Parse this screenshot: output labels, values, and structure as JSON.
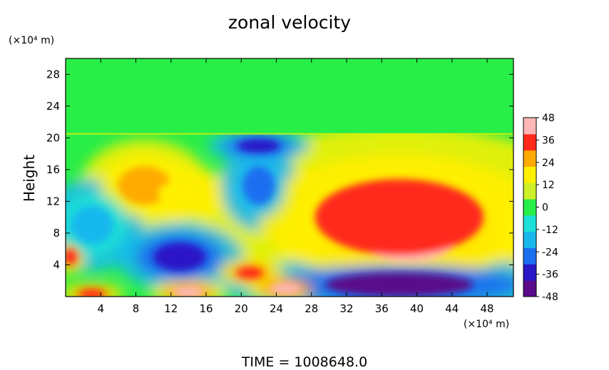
{
  "chart_data": {
    "type": "heatmap",
    "title": "zonal velocity",
    "xlabel": "",
    "ylabel": "Height",
    "x_unit_label": "(×10⁴ m)",
    "y_unit_label": "(×10⁴ m)",
    "xlim": [
      0,
      51
    ],
    "ylim": [
      0,
      30
    ],
    "x_ticks": [
      4,
      8,
      12,
      16,
      20,
      24,
      28,
      32,
      36,
      40,
      44,
      48
    ],
    "y_ticks": [
      4,
      8,
      12,
      16,
      20,
      24,
      28
    ],
    "colorbar": {
      "min": -48,
      "max": 48,
      "ticks": [
        48,
        36,
        24,
        12,
        0,
        -12,
        -24,
        -36,
        -48
      ],
      "colors": [
        "#5a0a8a",
        "#2a18c8",
        "#1c6ef0",
        "#18b8ee",
        "#1ce0d8",
        "#28ee48",
        "#cef028",
        "#fff000",
        "#ffaa00",
        "#ff2a1a",
        "#ffb6b6"
      ]
    },
    "background_value": 2,
    "upper_layer": {
      "y_range": [
        20.5,
        30
      ],
      "value": 2
    },
    "features": [
      {
        "kind": "jet-max",
        "center": [
          39,
          8
        ],
        "value": 46
      },
      {
        "kind": "positive-lobe",
        "center": [
          38,
          10
        ],
        "value": 34
      },
      {
        "kind": "positive-lobe",
        "center": [
          9,
          14
        ],
        "value": 28
      },
      {
        "kind": "positive-lobe",
        "center": [
          13,
          13
        ],
        "value": 22
      },
      {
        "kind": "negative-lobe",
        "center": [
          38,
          1.5
        ],
        "value": -48
      },
      {
        "kind": "negative-lobe",
        "center": [
          13,
          5
        ],
        "value": -40
      },
      {
        "kind": "negative-lobe",
        "center": [
          22,
          14
        ],
        "value": -32
      },
      {
        "kind": "negative-lobe",
        "center": [
          22,
          19
        ],
        "value": -38
      },
      {
        "kind": "negative-lobe",
        "center": [
          3,
          9
        ],
        "value": -16
      },
      {
        "kind": "positive-lobe",
        "center": [
          14,
          0.5
        ],
        "value": 44
      },
      {
        "kind": "positive-lobe",
        "center": [
          25,
          1
        ],
        "value": 44
      },
      {
        "kind": "positive-lobe",
        "center": [
          21,
          3
        ],
        "value": 40
      },
      {
        "kind": "positive-lobe",
        "center": [
          3,
          0.3
        ],
        "value": 40
      },
      {
        "kind": "positive-lobe",
        "center": [
          0.5,
          5
        ],
        "value": 36
      }
    ]
  },
  "footer": {
    "time_text": "TIME  =  1008648.0"
  }
}
